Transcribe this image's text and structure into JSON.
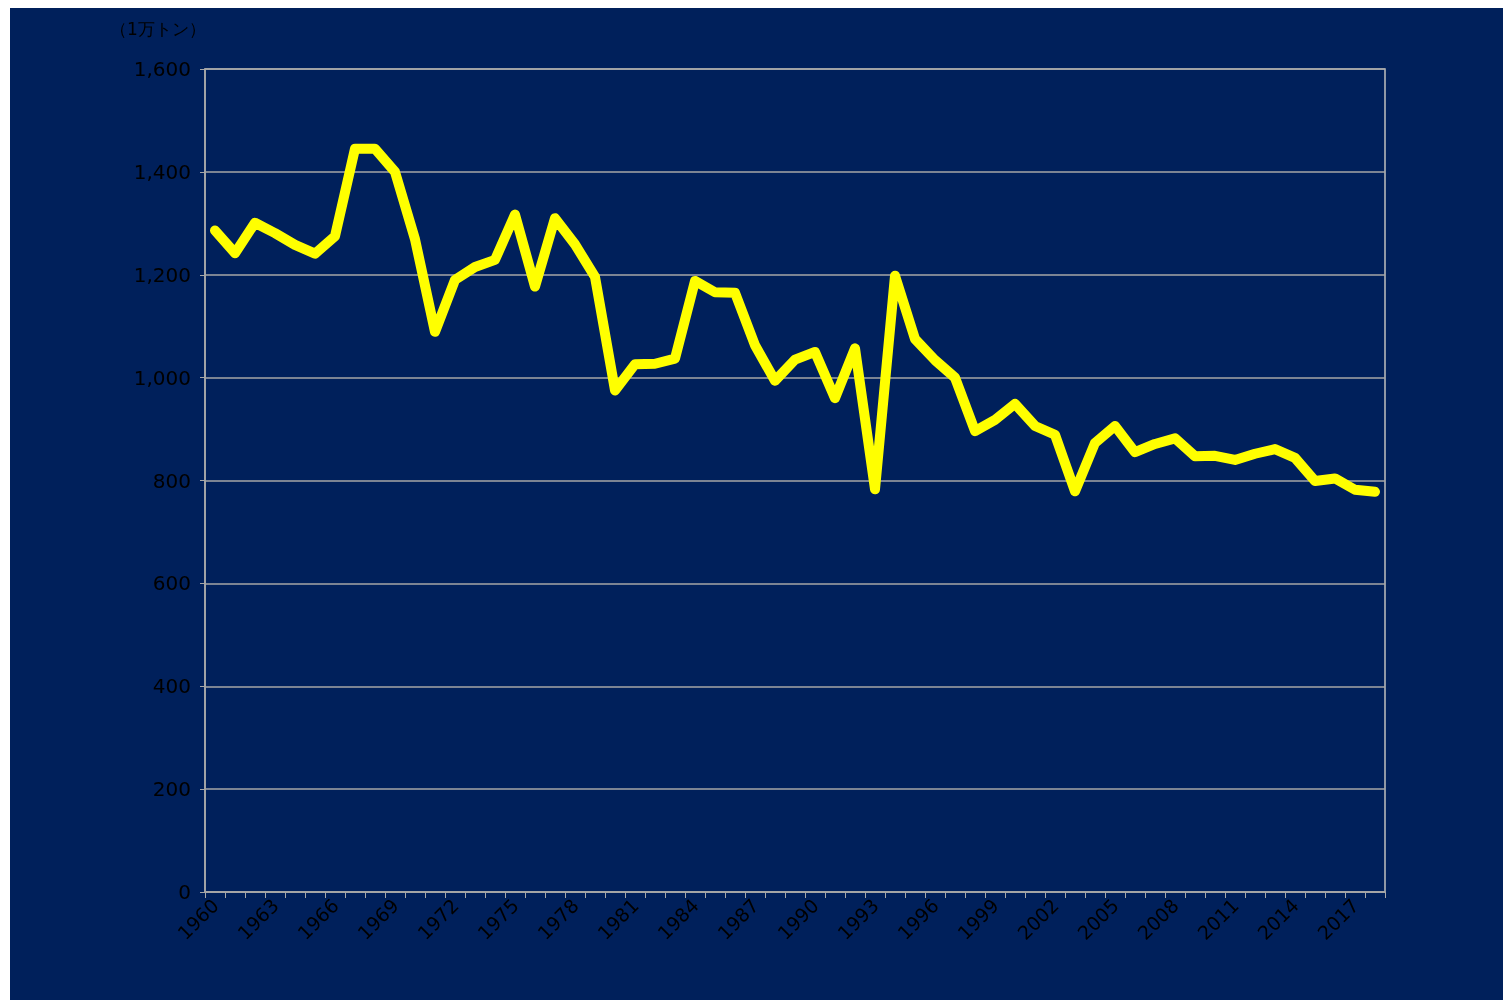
{
  "chart_data": {
    "type": "line",
    "ylabel": "（1万トン）",
    "categories": [
      "1960",
      null,
      null,
      "1963",
      null,
      null,
      "1966",
      null,
      null,
      "1969",
      null,
      null,
      "1972",
      null,
      null,
      "1975",
      null,
      null,
      "1978",
      null,
      null,
      "1981",
      null,
      null,
      "1984",
      null,
      null,
      "1987",
      null,
      null,
      "1990",
      null,
      null,
      "1993",
      null,
      null,
      "1996",
      null,
      null,
      "1999",
      null,
      null,
      "2002",
      null,
      null,
      "2005",
      null,
      null,
      "2008",
      null,
      null,
      "2011",
      null,
      null,
      "2014",
      null,
      null,
      "2017",
      null
    ],
    "series": [
      {
        "color": "#ffff00",
        "values": [
          1286,
          1242,
          1301,
          1281,
          1258,
          1241,
          1275,
          1445,
          1445,
          1400,
          1269,
          1089,
          1190,
          1215,
          1229,
          1317,
          1177,
          1310,
          1259,
          1196,
          975,
          1026,
          1027,
          1037,
          1188,
          1166,
          1165,
          1063,
          994,
          1035,
          1050,
          960,
          1057,
          783,
          1198,
          1075,
          1034,
          1000,
          896,
          918,
          949,
          906,
          889,
          779,
          873,
          906,
          855,
          871,
          882,
          847,
          848,
          840,
          852,
          861,
          844,
          799,
          804,
          782,
          778
        ]
      }
    ],
    "ylim": [
      0,
      1600
    ],
    "yticks": [
      {
        "value": 0,
        "label": "0"
      },
      {
        "value": 200,
        "label": "200"
      },
      {
        "value": 400,
        "label": "400"
      },
      {
        "value": 600,
        "label": "600"
      },
      {
        "value": 800,
        "label": "800"
      },
      {
        "value": 1000,
        "label": "1,000"
      },
      {
        "value": 1200,
        "label": "1,200"
      },
      {
        "value": 1400,
        "label": "1,400"
      },
      {
        "value": 1600,
        "label": "1,600"
      }
    ],
    "grid": "y",
    "line_style": "solid"
  }
}
